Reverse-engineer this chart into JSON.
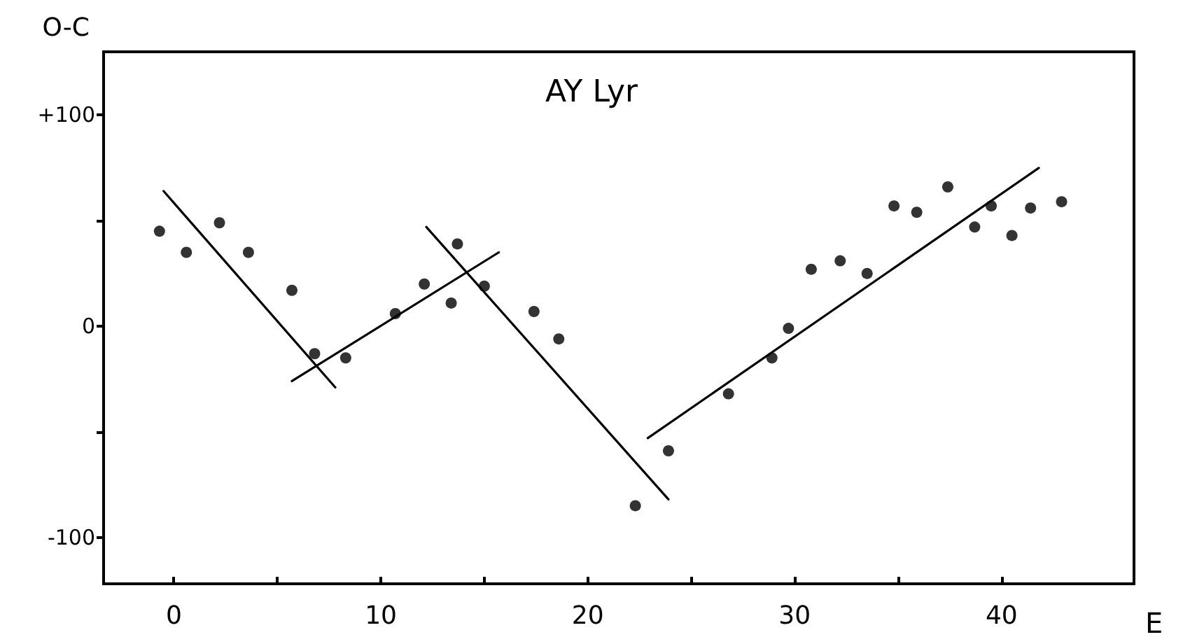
{
  "chart_data": {
    "type": "scatter",
    "title": "AY Lyr",
    "xlabel": "E",
    "ylabel": "O-C",
    "xlim": [
      -3.4,
      46.4
    ],
    "ylim": [
      -122,
      130
    ],
    "xticks": [
      0,
      {
        "value": 5,
        "label": null
      },
      10,
      {
        "value": 15,
        "label": null
      },
      20,
      {
        "value": 25,
        "label": null
      },
      30,
      {
        "value": 35,
        "label": null
      },
      40
    ],
    "yticks": [
      {
        "value": -100,
        "label": "-100"
      },
      {
        "value": -50,
        "label": null
      },
      0,
      {
        "value": 50,
        "label": null
      },
      {
        "value": 100,
        "label": "+100"
      }
    ],
    "marker": "circle",
    "series": [
      {
        "color": "#000000",
        "x": [
          -0.7,
          0.6,
          2.2,
          3.6,
          5.7,
          6.8,
          8.3,
          10.7,
          12.1,
          13.4,
          13.7,
          15.0,
          17.4,
          18.6,
          22.3,
          23.9,
          26.8,
          28.9,
          29.7,
          30.8,
          32.2,
          33.5,
          34.8,
          35.9,
          37.4,
          38.7,
          39.5,
          40.5,
          41.4,
          42.9
        ],
        "values": [
          45,
          35,
          49,
          35,
          17,
          -13,
          -15,
          6,
          20,
          11,
          39,
          19,
          7,
          -6,
          -85,
          -59,
          -32,
          -15,
          -1,
          27,
          31,
          25,
          57,
          54,
          66,
          47,
          57,
          43,
          56,
          59
        ]
      },
      {
        "type": "line",
        "color": "#000000",
        "marker": "none",
        "x": [
          -0.5,
          7.8
        ],
        "values": [
          64,
          -29
        ]
      },
      {
        "type": "line",
        "color": "#000000",
        "marker": "none",
        "x": [
          5.7,
          15.7
        ],
        "values": [
          -26,
          35
        ]
      },
      {
        "type": "line",
        "color": "#000000",
        "marker": "none",
        "x": [
          12.2,
          23.9
        ],
        "values": [
          47,
          -82
        ]
      },
      {
        "type": "line",
        "color": "#000000",
        "marker": "none",
        "x": [
          22.9,
          41.8
        ],
        "values": [
          -53,
          75
        ]
      }
    ]
  }
}
